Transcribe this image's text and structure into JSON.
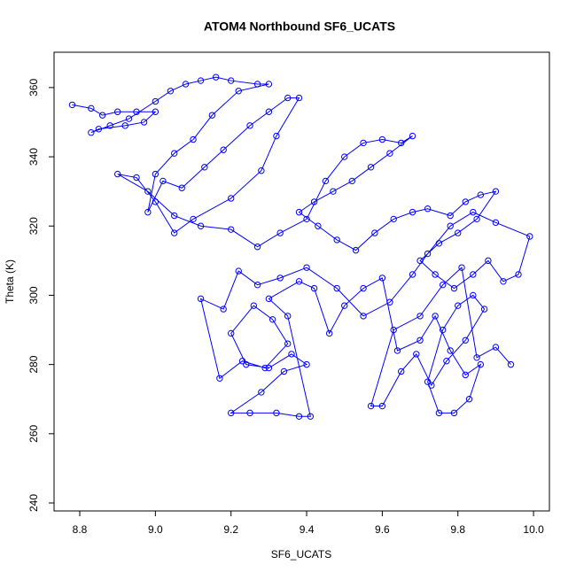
{
  "chart_data": {
    "type": "line_points",
    "title": "ATOM4 Northbound SF6_UCATS",
    "x_label": "SF6_UCATS",
    "y_label": "Theta (K)",
    "color": "#0000ff",
    "xlim": [
      8.732,
      10.042
    ],
    "ylim": [
      237.7,
      370.2
    ],
    "xticks": [
      8.8,
      {
        "value": 9.0,
        "label": "9.0"
      },
      9.2,
      9.4,
      9.6,
      9.8,
      {
        "value": 10.0,
        "label": "10.0"
      }
    ],
    "yticks": [
      240,
      260,
      280,
      300,
      320,
      340,
      360
    ],
    "x": [
      8.78,
      8.83,
      8.86,
      8.9,
      8.95,
      9.0,
      8.97,
      8.92,
      8.85,
      8.83,
      8.88,
      8.93,
      9.0,
      9.04,
      9.08,
      9.12,
      9.16,
      9.2,
      9.27,
      9.3,
      9.22,
      9.15,
      9.1,
      9.05,
      9.0,
      8.98,
      9.02,
      9.07,
      9.13,
      9.18,
      9.25,
      9.3,
      9.35,
      9.38,
      9.32,
      9.28,
      9.2,
      9.1,
      9.05,
      9.0,
      8.95,
      8.9,
      8.98,
      9.05,
      9.12,
      9.2,
      9.27,
      9.33,
      9.4,
      9.45,
      9.5,
      9.55,
      9.6,
      9.65,
      9.68,
      9.62,
      9.57,
      9.52,
      9.47,
      9.42,
      9.38,
      9.43,
      9.48,
      9.53,
      9.58,
      9.63,
      9.68,
      9.72,
      9.78,
      9.82,
      9.86,
      9.9,
      9.85,
      9.8,
      9.75,
      9.7,
      9.74,
      9.79,
      9.84,
      9.88,
      9.92,
      9.96,
      9.99,
      9.9,
      9.84,
      9.78,
      9.72,
      9.68,
      9.62,
      9.55,
      9.48,
      9.4,
      9.33,
      9.27,
      9.22,
      9.18,
      9.12,
      9.17,
      9.23,
      9.29,
      9.35,
      9.31,
      9.26,
      9.2,
      9.24,
      9.3,
      9.36,
      9.4,
      9.34,
      9.28,
      9.2,
      9.25,
      9.32,
      9.38,
      9.41,
      9.35,
      9.3,
      9.38,
      9.42,
      9.46,
      9.5,
      9.55,
      9.6,
      9.64,
      9.7,
      9.74,
      9.78,
      9.82,
      9.86,
      9.83,
      9.79,
      9.75,
      9.72,
      9.76,
      9.8,
      9.84,
      9.87,
      9.82,
      9.77,
      9.73,
      9.69,
      9.65,
      9.6,
      9.57,
      9.63,
      9.7,
      9.76,
      9.81,
      9.85,
      9.9,
      9.94
    ],
    "values": [
      355,
      354,
      352,
      353,
      353,
      353,
      350,
      349,
      348,
      347,
      349,
      351,
      356,
      359,
      361,
      362,
      363,
      362,
      361,
      361,
      359,
      352,
      345,
      341,
      335,
      324,
      333,
      331,
      337,
      342,
      349,
      353,
      357,
      357,
      346,
      336,
      328,
      322,
      318,
      327,
      334,
      335,
      330,
      323,
      320,
      319,
      314,
      318,
      322,
      333,
      340,
      344,
      345,
      344,
      346,
      341,
      337,
      333,
      330,
      327,
      324,
      320,
      316,
      313,
      318,
      322,
      324,
      325,
      323,
      327,
      329,
      330,
      322,
      318,
      315,
      310,
      306,
      302,
      306,
      310,
      304,
      306,
      317,
      321,
      324,
      320,
      312,
      306,
      298,
      294,
      302,
      308,
      305,
      303,
      307,
      296,
      299,
      276,
      281,
      279,
      286,
      293,
      297,
      289,
      280,
      279,
      283,
      280,
      278,
      272,
      266,
      266,
      266,
      265,
      265,
      294,
      299,
      304,
      302,
      289,
      297,
      302,
      305,
      284,
      287,
      294,
      284,
      277,
      280,
      270,
      266,
      266,
      275,
      290,
      297,
      300,
      296,
      287,
      281,
      274,
      283,
      278,
      268,
      268,
      290,
      294,
      303,
      308,
      282,
      285,
      280
    ]
  }
}
